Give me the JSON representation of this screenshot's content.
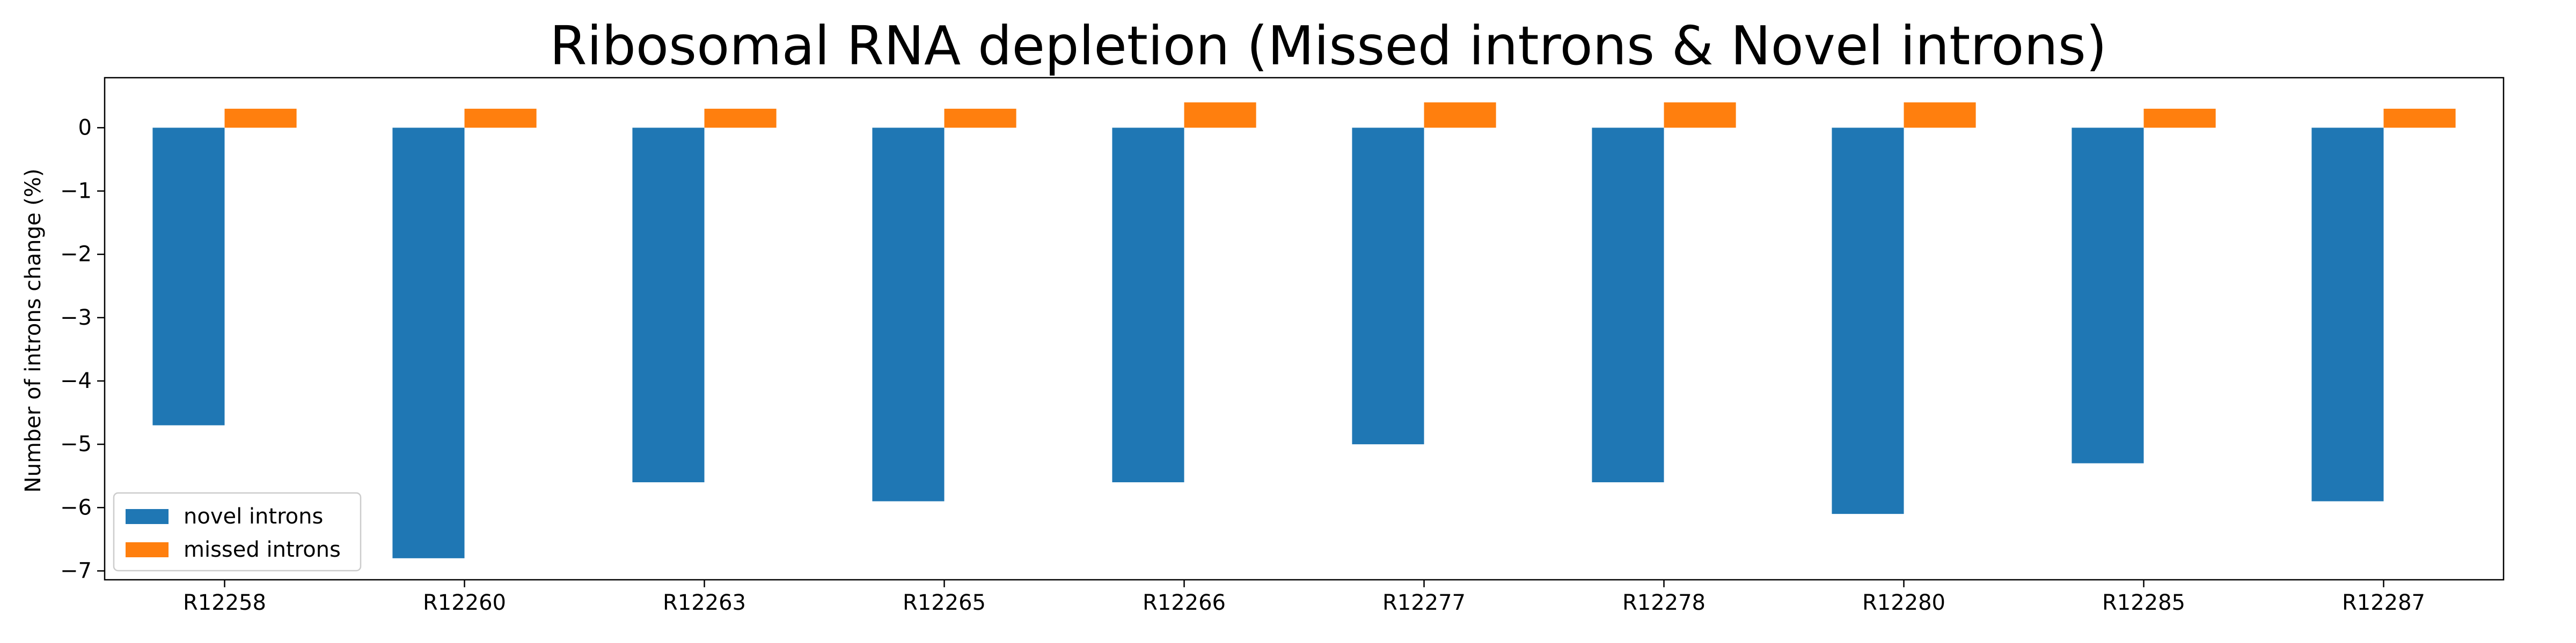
{
  "chart_data": {
    "type": "bar",
    "title": "Ribosomal RNA depletion (Missed introns & Novel introns)",
    "xlabel": "",
    "ylabel": "Number of introns change (%)",
    "categories": [
      "R12258",
      "R12260",
      "R12263",
      "R12265",
      "R12266",
      "R12277",
      "R12278",
      "R12280",
      "R12285",
      "R12287"
    ],
    "series": [
      {
        "name": "novel introns",
        "color": "#1f77b4",
        "values": [
          -4.7,
          -6.8,
          -5.6,
          -5.9,
          -5.6,
          -5.0,
          -5.6,
          -6.1,
          -5.3,
          -5.9
        ]
      },
      {
        "name": "missed introns",
        "color": "#ff7f0e",
        "values": [
          0.3,
          0.3,
          0.3,
          0.3,
          0.4,
          0.4,
          0.4,
          0.4,
          0.3,
          0.3
        ]
      }
    ],
    "ylim": [
      -7.14,
      0.79
    ],
    "yticks": [
      0,
      -1,
      -2,
      -3,
      -4,
      -5,
      -6,
      -7
    ],
    "ytick_labels": [
      "0",
      "−1",
      "−2",
      "−3",
      "−4",
      "−5",
      "−6",
      "−7"
    ],
    "legend_placement": "lower-left",
    "grid": false
  }
}
